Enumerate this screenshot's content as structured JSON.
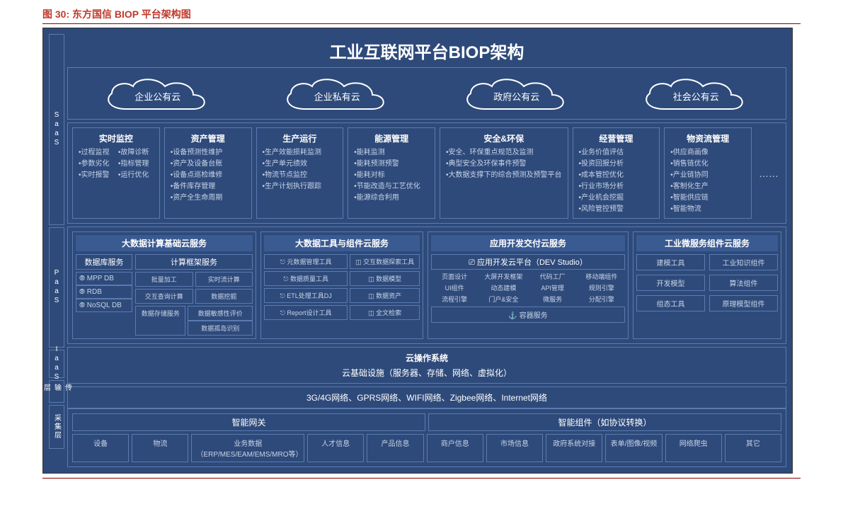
{
  "caption": "图 30: 东方国信 BIOP 平台架构图",
  "title": "工业互联网平台BIOP架构",
  "colors": {
    "bg": "#2e4a7a",
    "border": "#5a7ab0",
    "text_light": "#c8d4e8",
    "caption": "#c0392b",
    "rule": "#8b0000",
    "head_bg": "#3a5a92"
  },
  "side_labels": [
    "SaaS",
    "PaaS",
    "IaaS",
    "传输层",
    "采集层"
  ],
  "side_heights": [
    270,
    170,
    40,
    32,
    62
  ],
  "clouds": [
    "企业公有云",
    "企业私有云",
    "政府公有云",
    "社会公有云"
  ],
  "saas": [
    {
      "head": "实时监控",
      "items": [
        "•过程监视",
        "•参数劣化",
        "•实时报警",
        "•故障诊断",
        "•指标管理",
        "•运行优化"
      ],
      "two": true
    },
    {
      "head": "资产管理",
      "items": [
        "•设备预测性维护",
        "•资产及设备台账",
        "•设备点巡检维修",
        "•备件库存管理",
        "•资产全生命周期"
      ]
    },
    {
      "head": "生产运行",
      "items": [
        "•生产效能损耗监测",
        "•生产单元绩效",
        "•物流节点监控",
        "•生产计划执行跟踪"
      ]
    },
    {
      "head": "能源管理",
      "items": [
        "•能耗监测",
        "•能耗预测预警",
        "•能耗对标",
        "•节能改造与工艺优化",
        "•能源综合利用"
      ]
    },
    {
      "head": "安全&环保",
      "items": [
        "•安全、环保重点规范及监测",
        "•典型安全及环保事件预警",
        "•大数据支撑下的综合预测及预警平台"
      ]
    },
    {
      "head": "经营管理",
      "items": [
        "•业务价值评估",
        "•投资回报分析",
        "•成本管控优化",
        "•行业市场分析",
        "•产业机会挖掘",
        "•风险管控预警"
      ]
    },
    {
      "head": "物资流管理",
      "items": [
        "•供应商画像",
        "•销售链优化",
        "•产业链协同",
        "•客制化生产",
        "•智能供应链",
        "•智能物流"
      ]
    }
  ],
  "paas": {
    "bigdata_compute": {
      "head": "大数据计算基础云服务",
      "db_head": "数据库服务",
      "dbs": [
        "MPP DB",
        "RDB",
        "NoSQL DB"
      ],
      "compute_head": "计算框架服务",
      "compute_items": [
        "批量加工",
        "实时流计算",
        "交互查询计算",
        "数据挖掘"
      ],
      "storage_head": "数据存储服务",
      "extra": [
        "数据敏感性评价",
        "数据孤岛识别"
      ]
    },
    "bigdata_tools": {
      "head": "大数据工具与组件云服务",
      "left": [
        "元数据管理工具",
        "数据质量工具",
        "ETL处理工具DJ",
        "Report设计工具"
      ],
      "right": [
        "交互数据探索工具",
        "数据模型",
        "数据资产",
        "全文检索"
      ]
    },
    "app_dev": {
      "head": "应用开发交付云服务",
      "sub": "应用开发云平台（DEV Studio）",
      "items": [
        "页面设计",
        "大屏开发框架",
        "代码工厂",
        "移动端组件",
        "UI组件",
        "动态建模",
        "API管理",
        "规则引擎",
        "流程引擎",
        "门户&安全",
        "微服务",
        "分配引擎"
      ],
      "container": "容器服务"
    },
    "micro": {
      "head": "工业微服务组件云服务",
      "items": [
        "建模工具",
        "工业知识组件",
        "开发模型",
        "算法组件",
        "组态工具",
        "原理模型组件"
      ]
    }
  },
  "iaas": {
    "head": "云操作系统",
    "sub": "云基础设施（服务器、存储、网络、虚拟化）"
  },
  "network": "3G/4G网络、GPRS网络、WIFI网络、Zigbee网络、Internet网络",
  "collect": {
    "heads": [
      "智能网关",
      "智能组件（如协议转换）"
    ],
    "chips": [
      "设备",
      "物流",
      "业务数据（ERP/MES/EAM/EMS/MRO等）",
      "人才信息",
      "产品信息",
      "商户信息",
      "市场信息",
      "政府系统对接",
      "表单/图像/视频",
      "网络爬虫",
      "其它"
    ]
  }
}
